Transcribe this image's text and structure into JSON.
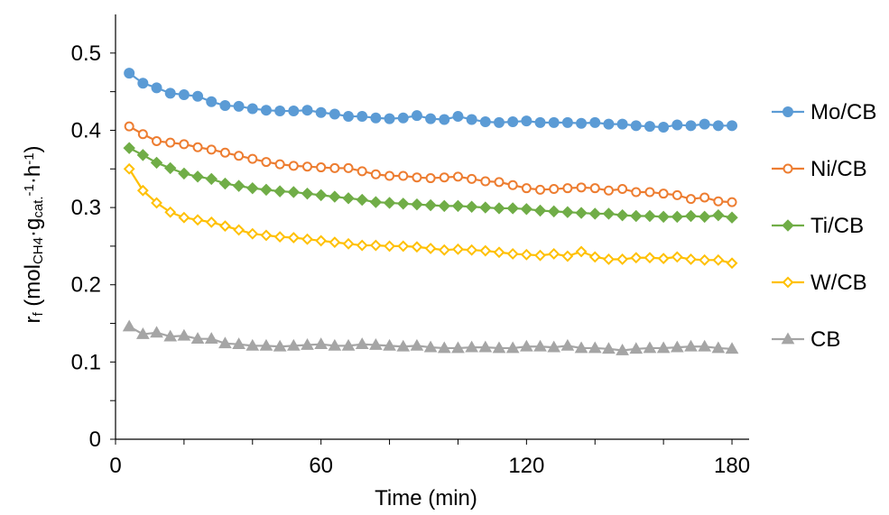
{
  "chart_data": {
    "type": "line",
    "title": "",
    "xlabel": "Time (min)",
    "ylabel": {
      "base": "r",
      "base_sub": "f",
      "open": " (mol",
      "sub1": "CH4",
      "mid": "·g",
      "sub2": "cat.",
      "sup1": "-1",
      "mid2": "·h",
      "sup2": "-1",
      "close": ")"
    },
    "xlim": [
      0,
      185
    ],
    "ylim": [
      0,
      0.55
    ],
    "xticks": [
      0,
      60,
      120,
      180
    ],
    "yticks": [
      0,
      0.1,
      0.2,
      0.3,
      0.4,
      0.5
    ],
    "ytick_labels": [
      "0",
      "0.1",
      "0.2",
      "0.3",
      "0.4",
      "0.5"
    ],
    "xtick_labels": [
      "0",
      "60",
      "120",
      "180"
    ],
    "legend_position": "right",
    "x": [
      4,
      8,
      12,
      16,
      20,
      24,
      28,
      32,
      36,
      40,
      44,
      48,
      52,
      56,
      60,
      64,
      68,
      72,
      76,
      80,
      84,
      88,
      92,
      96,
      100,
      104,
      108,
      112,
      116,
      120,
      124,
      128,
      132,
      136,
      140,
      144,
      148,
      152,
      156,
      160,
      164,
      168,
      172,
      176,
      180
    ],
    "series": [
      {
        "name": "Mo/CB",
        "color": "#5b9bd5",
        "marker": "circle",
        "values": [
          0.474,
          0.461,
          0.455,
          0.448,
          0.446,
          0.444,
          0.437,
          0.432,
          0.431,
          0.428,
          0.426,
          0.425,
          0.425,
          0.426,
          0.423,
          0.421,
          0.418,
          0.418,
          0.416,
          0.415,
          0.416,
          0.419,
          0.415,
          0.414,
          0.418,
          0.414,
          0.411,
          0.41,
          0.411,
          0.412,
          0.41,
          0.41,
          0.41,
          0.409,
          0.41,
          0.408,
          0.408,
          0.406,
          0.405,
          0.404,
          0.407,
          0.406,
          0.408,
          0.406,
          0.406
        ]
      },
      {
        "name": "Ni/CB",
        "color": "#ed7d31",
        "marker": "circle-open",
        "values": [
          0.405,
          0.395,
          0.386,
          0.384,
          0.382,
          0.378,
          0.375,
          0.371,
          0.367,
          0.363,
          0.359,
          0.356,
          0.354,
          0.353,
          0.352,
          0.351,
          0.351,
          0.347,
          0.343,
          0.341,
          0.341,
          0.339,
          0.338,
          0.339,
          0.34,
          0.337,
          0.334,
          0.333,
          0.329,
          0.325,
          0.323,
          0.324,
          0.325,
          0.326,
          0.325,
          0.322,
          0.324,
          0.32,
          0.32,
          0.318,
          0.316,
          0.311,
          0.313,
          0.308,
          0.307
        ]
      },
      {
        "name": "Ti/CB",
        "color": "#70ad47",
        "marker": "diamond",
        "values": [
          0.377,
          0.368,
          0.358,
          0.351,
          0.344,
          0.34,
          0.337,
          0.331,
          0.328,
          0.325,
          0.323,
          0.321,
          0.32,
          0.318,
          0.316,
          0.314,
          0.312,
          0.31,
          0.307,
          0.306,
          0.305,
          0.304,
          0.303,
          0.302,
          0.302,
          0.301,
          0.3,
          0.299,
          0.299,
          0.298,
          0.296,
          0.295,
          0.294,
          0.293,
          0.292,
          0.292,
          0.29,
          0.289,
          0.289,
          0.288,
          0.288,
          0.289,
          0.288,
          0.29,
          0.287
        ]
      },
      {
        "name": "W/CB",
        "color": "#ffc000",
        "marker": "diamond-open",
        "values": [
          0.35,
          0.322,
          0.306,
          0.294,
          0.287,
          0.284,
          0.281,
          0.276,
          0.271,
          0.266,
          0.264,
          0.262,
          0.261,
          0.259,
          0.257,
          0.255,
          0.253,
          0.251,
          0.251,
          0.25,
          0.25,
          0.249,
          0.247,
          0.245,
          0.246,
          0.245,
          0.244,
          0.242,
          0.24,
          0.239,
          0.238,
          0.24,
          0.237,
          0.243,
          0.236,
          0.233,
          0.233,
          0.235,
          0.235,
          0.234,
          0.236,
          0.233,
          0.232,
          0.232,
          0.228
        ]
      },
      {
        "name": "CB",
        "color": "#a5a5a5",
        "marker": "triangle",
        "values": [
          0.146,
          0.136,
          0.138,
          0.133,
          0.134,
          0.13,
          0.13,
          0.124,
          0.123,
          0.121,
          0.121,
          0.12,
          0.121,
          0.122,
          0.123,
          0.121,
          0.121,
          0.123,
          0.122,
          0.121,
          0.12,
          0.121,
          0.119,
          0.118,
          0.118,
          0.119,
          0.119,
          0.118,
          0.118,
          0.12,
          0.12,
          0.119,
          0.121,
          0.118,
          0.118,
          0.117,
          0.115,
          0.117,
          0.118,
          0.118,
          0.119,
          0.12,
          0.12,
          0.118,
          0.117
        ]
      }
    ]
  }
}
